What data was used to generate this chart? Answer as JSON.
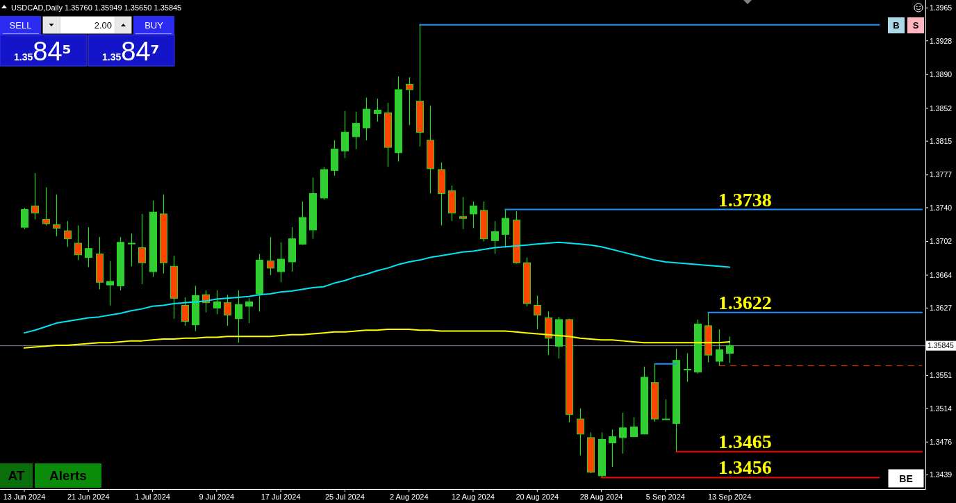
{
  "chart_data": {
    "type": "candlestick",
    "title": "USDCAD,Daily 1.35760 1.35949 1.35650 1.35845",
    "categories": [
      "13 Jun 2024",
      null,
      null,
      null,
      null,
      null,
      "21 Jun 2024",
      null,
      null,
      null,
      null,
      null,
      "1 Jul 2024",
      null,
      null,
      null,
      null,
      null,
      "9 Jul 2024",
      null,
      null,
      null,
      null,
      null,
      "17 Jul 2024",
      null,
      null,
      null,
      null,
      null,
      "25 Jul 2024",
      null,
      null,
      null,
      null,
      null,
      "2 Aug 2024",
      null,
      null,
      null,
      null,
      null,
      "12 Aug 2024",
      null,
      null,
      null,
      null,
      null,
      "20 Aug 2024",
      null,
      null,
      null,
      null,
      null,
      "28 Aug 2024",
      null,
      null,
      null,
      null,
      null,
      "5 Sep 2024",
      null,
      null,
      null,
      null,
      null,
      "13 Sep 2024",
      null,
      null,
      null,
      null,
      null,
      null,
      null,
      null,
      null,
      null,
      null,
      null,
      null,
      null,
      null,
      null,
      null,
      null
    ],
    "ohlc": [
      [
        1.3718,
        1.374,
        1.3716,
        1.3738
      ],
      [
        1.3742,
        1.3779,
        1.3727,
        1.3734
      ],
      [
        1.3727,
        1.3763,
        1.372,
        1.3722
      ],
      [
        1.3721,
        1.3755,
        1.3708,
        1.3717
      ],
      [
        1.3714,
        1.3725,
        1.3696,
        1.3705
      ],
      [
        1.37,
        1.372,
        1.3681,
        1.3687
      ],
      [
        1.3684,
        1.3718,
        1.3673,
        1.3694
      ],
      [
        1.3688,
        1.3707,
        1.3648,
        1.3656
      ],
      [
        1.3653,
        1.368,
        1.363,
        1.3657
      ],
      [
        1.3652,
        1.3707,
        1.3647,
        1.3701
      ],
      [
        1.37,
        1.3711,
        1.3674,
        1.37
      ],
      [
        1.3695,
        1.3733,
        1.3654,
        1.3678
      ],
      [
        1.3668,
        1.3748,
        1.3662,
        1.3735
      ],
      [
        1.3733,
        1.3755,
        1.3666,
        1.3678
      ],
      [
        1.3674,
        1.3686,
        1.3615,
        1.3638
      ],
      [
        1.363,
        1.3639,
        1.3607,
        1.3612
      ],
      [
        1.3608,
        1.3652,
        1.3601,
        1.3641
      ],
      [
        1.3642,
        1.3647,
        1.3622,
        1.3633
      ],
      [
        1.3627,
        1.3647,
        1.362,
        1.3634
      ],
      [
        1.3633,
        1.3642,
        1.3607,
        1.3619
      ],
      [
        1.3615,
        1.3647,
        1.3588,
        1.3631
      ],
      [
        1.3629,
        1.3638,
        1.361,
        1.3634
      ],
      [
        1.3643,
        1.3688,
        1.3623,
        1.3681
      ],
      [
        1.368,
        1.3707,
        1.3664,
        1.3672
      ],
      [
        1.3668,
        1.3701,
        1.3656,
        1.3682
      ],
      [
        1.3679,
        1.3718,
        1.3668,
        1.3705
      ],
      [
        1.3699,
        1.3747,
        1.3698,
        1.3729
      ],
      [
        1.3715,
        1.3774,
        1.3705,
        1.3756
      ],
      [
        1.3751,
        1.3786,
        1.3749,
        1.3783
      ],
      [
        1.3782,
        1.3816,
        1.3776,
        1.3806
      ],
      [
        1.3804,
        1.3849,
        1.3796,
        1.3825
      ],
      [
        1.382,
        1.3848,
        1.3806,
        1.3835
      ],
      [
        1.383,
        1.3864,
        1.3816,
        1.3851
      ],
      [
        1.3846,
        1.3863,
        1.3837,
        1.385
      ],
      [
        1.3847,
        1.3858,
        1.3786,
        1.3808
      ],
      [
        1.3802,
        1.3888,
        1.3792,
        1.3873
      ],
      [
        1.3879,
        1.3887,
        1.3833,
        1.3873
      ],
      [
        1.386,
        1.3946,
        1.3809,
        1.3825
      ],
      [
        1.3816,
        1.3855,
        1.3756,
        1.3784
      ],
      [
        1.3783,
        1.3791,
        1.372,
        1.3756
      ],
      [
        1.3759,
        1.3765,
        1.3725,
        1.3734
      ],
      [
        1.373,
        1.3752,
        1.3716,
        1.3728
      ],
      [
        1.3733,
        1.3747,
        1.3717,
        1.3742
      ],
      [
        1.3737,
        1.3747,
        1.3702,
        1.3705
      ],
      [
        1.3703,
        1.3725,
        1.3688,
        1.3713
      ],
      [
        1.371,
        1.3738,
        1.3695,
        1.3728
      ],
      [
        1.3726,
        1.3736,
        1.3677,
        1.3678
      ],
      [
        1.3678,
        1.3684,
        1.3629,
        1.3632
      ],
      [
        1.363,
        1.3641,
        1.3603,
        1.3619
      ],
      [
        1.3616,
        1.3623,
        1.3574,
        1.3593
      ],
      [
        1.3584,
        1.3617,
        1.357,
        1.3614
      ],
      [
        1.3614,
        1.3615,
        1.3498,
        1.3507
      ],
      [
        1.3502,
        1.3514,
        1.3461,
        1.3485
      ],
      [
        1.3481,
        1.3487,
        1.3441,
        1.3442
      ],
      [
        1.3438,
        1.3487,
        1.3436,
        1.3479
      ],
      [
        1.3475,
        1.349,
        1.3448,
        1.3482
      ],
      [
        1.3481,
        1.3509,
        1.3463,
        1.3492
      ],
      [
        1.3482,
        1.3504,
        1.3482,
        1.3493
      ],
      [
        1.3485,
        1.3561,
        1.3485,
        1.3549
      ],
      [
        1.3543,
        1.3564,
        1.3499,
        1.3502
      ],
      [
        1.3502,
        1.3524,
        1.3501,
        1.3502
      ],
      [
        1.3497,
        1.3581,
        1.3465,
        1.3568
      ],
      [
        1.3558,
        1.3576,
        1.3544,
        1.3558
      ],
      [
        1.3555,
        1.3614,
        1.3553,
        1.3609
      ],
      [
        1.3607,
        1.3622,
        1.3566,
        1.3574
      ],
      [
        1.3567,
        1.3603,
        1.3562,
        1.358
      ],
      [
        1.3576,
        1.35949,
        1.3565,
        1.35845
      ],
      null,
      null,
      null,
      null,
      null,
      null,
      null,
      null,
      null,
      null,
      null,
      null,
      null,
      null,
      null,
      null,
      null,
      null
    ],
    "color": "#22dd22",
    "colors": [
      "#32cd32",
      "#ff4500",
      "#ff4500",
      "#ff4500",
      "#ff4500",
      "#ff4500",
      "#32cd32",
      "#ff4500",
      "#32cd32",
      "#32cd32",
      "#32cd32",
      "#ff4500",
      "#32cd32",
      "#ff4500",
      "#ff4500",
      "#ff4500",
      "#32cd32",
      "#ff4500",
      "#32cd32",
      "#ff4500",
      "#32cd32",
      "#32cd32",
      "#32cd32",
      "#ff4500",
      "#32cd32",
      "#32cd32",
      "#32cd32",
      "#32cd32",
      "#32cd32",
      "#32cd32",
      "#32cd32",
      "#32cd32",
      "#32cd32",
      "#32cd32",
      "#ff4500",
      "#32cd32",
      "#ff4500",
      "#ff4500",
      "#ff4500",
      "#ff4500",
      "#ff4500",
      "#ff4500",
      "#32cd32",
      "#ff4500",
      "#32cd32",
      "#32cd32",
      "#ff4500",
      "#ff4500",
      "#ff4500",
      "#ff4500",
      "#32cd32",
      "#ff4500",
      "#ff4500",
      "#ff4500",
      "#32cd32",
      "#32cd32",
      "#32cd32",
      "#32cd32",
      "#32cd32",
      "#ff4500",
      "#32cd32",
      "#32cd32",
      "#32cd32",
      "#32cd32",
      "#ff4500",
      "#32cd32",
      "#32cd32",
      null,
      null,
      null,
      null,
      null,
      null,
      null,
      null,
      null,
      null,
      null,
      null,
      null,
      null,
      null,
      null,
      null,
      null
    ],
    "series": [
      {
        "type": "line",
        "color": "#00e5f5",
        "values": [
          1.3599,
          1.3602,
          1.3606,
          1.361,
          1.3612,
          1.3614,
          1.3616,
          1.3617,
          1.3619,
          1.3621,
          1.3624,
          1.3626,
          1.3629,
          1.363,
          1.3632,
          1.3633,
          1.3634,
          1.3635,
          1.3637,
          1.3638,
          1.3639,
          1.364,
          1.3642,
          1.3643,
          1.3645,
          1.3646,
          1.3648,
          1.365,
          1.3651,
          1.3655,
          1.3658,
          1.3662,
          1.3665,
          1.3669,
          1.3672,
          1.3676,
          1.3679,
          1.3681,
          1.3684,
          1.3686,
          1.3688,
          1.369,
          1.3691,
          1.3693,
          1.3695,
          1.3696,
          1.3697,
          1.3698,
          1.3699,
          1.37,
          1.3701,
          1.37,
          1.3699,
          1.3698,
          1.3696,
          1.3693,
          1.369,
          1.3687,
          1.3684,
          1.3681,
          1.3679,
          1.3678,
          1.3677,
          1.3676,
          1.3675,
          1.3674,
          1.3673,
          null,
          null,
          null,
          null,
          null,
          null,
          null,
          null,
          null,
          null,
          null,
          null,
          null,
          null,
          null,
          null,
          null,
          null
        ]
      },
      {
        "type": "line",
        "color": "#ffff00",
        "values": [
          1.3582,
          1.3583,
          1.3584,
          1.3585,
          1.3585,
          1.3586,
          1.3587,
          1.3588,
          1.3588,
          1.3589,
          1.359,
          1.359,
          1.3591,
          1.3592,
          1.3592,
          1.3593,
          1.3593,
          1.3594,
          1.3594,
          1.3595,
          1.3595,
          1.3595,
          1.3595,
          1.3595,
          1.3596,
          1.3597,
          1.3597,
          1.3598,
          1.3599,
          1.36,
          1.36,
          1.3601,
          1.3602,
          1.3602,
          1.3603,
          1.3603,
          1.3603,
          1.3602,
          1.3602,
          1.3601,
          1.3601,
          1.3601,
          1.3601,
          1.3601,
          1.3601,
          1.3601,
          1.36,
          1.3599,
          1.3598,
          1.3597,
          1.3596,
          1.3595,
          1.3593,
          1.3592,
          1.3591,
          1.3591,
          1.359,
          1.3589,
          1.3588,
          1.3588,
          1.3588,
          1.3588,
          1.3588,
          1.3588,
          1.3588,
          1.3588,
          1.3589,
          null,
          null,
          null,
          null,
          null,
          null,
          null,
          null,
          null,
          null,
          null,
          null,
          null,
          null,
          null,
          null,
          null,
          null
        ]
      },
      {
        "type": "line",
        "color": "#1e90ff",
        "values": [
          null,
          null,
          null,
          null,
          null,
          null,
          null,
          null,
          null,
          null,
          null,
          null,
          null,
          null,
          null,
          null,
          null,
          null,
          null,
          null,
          null,
          null,
          null,
          null,
          null,
          null,
          null,
          null,
          null,
          null,
          null,
          null,
          null,
          null,
          null,
          null,
          null,
          1.3946,
          1.3946,
          1.3946,
          1.3946,
          1.3946,
          1.3946,
          1.3946,
          1.3946,
          1.3946,
          1.3946,
          1.3946,
          1.3946,
          1.3946,
          1.3946,
          1.3946,
          1.3946,
          1.3946,
          1.3946,
          1.3946,
          1.3946,
          1.3946,
          1.3946,
          1.3946,
          1.3946,
          1.3946,
          1.3946,
          1.3946,
          1.3946,
          1.3946,
          1.3946,
          1.3946,
          1.3946,
          1.3946,
          1.3946,
          1.3946,
          1.3946,
          1.3946,
          1.3946,
          1.3946,
          1.3946,
          1.3946,
          1.3946,
          1.3946,
          1.3946,
          null,
          null,
          null,
          null
        ]
      },
      {
        "type": "line",
        "color": "#1e90ff",
        "values": [
          null,
          null,
          null,
          null,
          null,
          null,
          null,
          null,
          null,
          null,
          null,
          null,
          null,
          null,
          null,
          null,
          null,
          null,
          null,
          null,
          null,
          null,
          null,
          null,
          null,
          null,
          null,
          null,
          null,
          null,
          null,
          null,
          null,
          null,
          null,
          null,
          null,
          null,
          null,
          null,
          null,
          null,
          null,
          null,
          null,
          1.3738,
          1.3738,
          1.3738,
          1.3738,
          1.3738,
          1.3738,
          1.3738,
          1.3738,
          1.3738,
          1.3738,
          1.3738,
          1.3738,
          1.3738,
          1.3738,
          1.3738,
          1.3738,
          1.3738,
          1.3738,
          1.3738,
          1.3738,
          1.3738,
          1.3738,
          1.3738,
          1.3738,
          1.3738,
          1.3738,
          1.3738,
          1.3738,
          1.3738,
          1.3738,
          1.3738,
          1.3738,
          1.3738,
          1.3738,
          1.3738,
          1.3738,
          1.3738,
          1.3738,
          1.3738,
          1.3738
        ]
      },
      {
        "type": "line",
        "color": "#1e90ff",
        "values": [
          null,
          null,
          null,
          null,
          null,
          null,
          null,
          null,
          null,
          null,
          null,
          null,
          null,
          null,
          null,
          null,
          null,
          null,
          null,
          null,
          null,
          null,
          null,
          null,
          null,
          null,
          null,
          null,
          null,
          null,
          null,
          null,
          null,
          null,
          null,
          null,
          null,
          null,
          null,
          null,
          null,
          null,
          null,
          null,
          null,
          null,
          null,
          null,
          null,
          null,
          null,
          null,
          null,
          null,
          null,
          null,
          null,
          null,
          null,
          null,
          null,
          null,
          null,
          null,
          1.3622,
          1.3622,
          1.3622,
          1.3622,
          1.3622,
          1.3622,
          1.3622,
          1.3622,
          1.3622,
          1.3622,
          1.3622,
          1.3622,
          1.3622,
          1.3622,
          1.3622,
          1.3622,
          1.3622,
          1.3622,
          1.3622,
          1.3622,
          1.3622
        ]
      },
      {
        "type": "line",
        "color": "#1e90ff",
        "values": [
          null,
          null,
          null,
          null,
          null,
          null,
          null,
          null,
          null,
          null,
          null,
          null,
          null,
          null,
          null,
          null,
          null,
          null,
          null,
          null,
          null,
          null,
          null,
          null,
          null,
          null,
          null,
          null,
          null,
          null,
          null,
          null,
          null,
          null,
          null,
          null,
          null,
          null,
          null,
          null,
          null,
          null,
          null,
          null,
          null,
          null,
          null,
          null,
          null,
          null,
          null,
          null,
          null,
          null,
          null,
          null,
          null,
          null,
          null,
          1.3564,
          1.3564,
          1.3564,
          null,
          null,
          null,
          null,
          null,
          null,
          null,
          null,
          null,
          null,
          null,
          null,
          null,
          null,
          null,
          null,
          null,
          null,
          null,
          null,
          null,
          null,
          null
        ]
      },
      {
        "type": "line",
        "color": "#ff0000",
        "values": [
          null,
          null,
          null,
          null,
          null,
          null,
          null,
          null,
          null,
          null,
          null,
          null,
          null,
          null,
          null,
          null,
          null,
          null,
          null,
          null,
          null,
          null,
          null,
          null,
          null,
          null,
          null,
          null,
          null,
          null,
          null,
          null,
          null,
          null,
          null,
          null,
          null,
          null,
          null,
          null,
          null,
          null,
          null,
          null,
          null,
          null,
          null,
          null,
          null,
          null,
          null,
          null,
          null,
          null,
          null,
          null,
          null,
          null,
          null,
          null,
          null,
          1.3465,
          1.3465,
          1.3465,
          1.3465,
          1.3465,
          1.3465,
          1.3465,
          1.3465,
          1.3465,
          1.3465,
          1.3465,
          1.3465,
          1.3465,
          1.3465,
          1.3465,
          1.3465,
          1.3465,
          1.3465,
          1.3465,
          1.3465,
          1.3465,
          1.3465,
          1.3465,
          1.3465
        ]
      },
      {
        "type": "line",
        "color": "#ff0000",
        "values": [
          null,
          null,
          null,
          null,
          null,
          null,
          null,
          null,
          null,
          null,
          null,
          null,
          null,
          null,
          null,
          null,
          null,
          null,
          null,
          null,
          null,
          null,
          null,
          null,
          null,
          null,
          null,
          null,
          null,
          null,
          null,
          null,
          null,
          null,
          null,
          null,
          null,
          null,
          null,
          null,
          null,
          null,
          null,
          null,
          null,
          null,
          null,
          null,
          null,
          null,
          null,
          null,
          null,
          null,
          1.3436,
          1.3436,
          1.3436,
          1.3436,
          1.3436,
          1.3436,
          1.3436,
          1.3436,
          1.3436,
          1.3436,
          1.3436,
          1.3436,
          1.3436,
          1.3436,
          1.3436,
          1.3436,
          1.3436,
          1.3436,
          1.3436,
          1.3436,
          1.3436,
          1.3436,
          1.3436,
          1.3436,
          1.3436,
          1.3436,
          1.3436,
          null,
          null,
          null,
          null
        ]
      },
      {
        "type": "line",
        "color": "#ff4500",
        "line_style": "dashed",
        "values": [
          null,
          null,
          null,
          null,
          null,
          null,
          null,
          null,
          null,
          null,
          null,
          null,
          null,
          null,
          null,
          null,
          null,
          null,
          null,
          null,
          null,
          null,
          null,
          null,
          null,
          null,
          null,
          null,
          null,
          null,
          null,
          null,
          null,
          null,
          null,
          null,
          null,
          null,
          null,
          null,
          null,
          null,
          null,
          null,
          null,
          null,
          null,
          null,
          null,
          null,
          null,
          null,
          null,
          null,
          null,
          null,
          null,
          null,
          null,
          null,
          null,
          null,
          null,
          null,
          null,
          1.3562,
          1.3562,
          1.3562,
          1.3562,
          1.3562,
          1.3562,
          1.3562,
          1.3562,
          1.3562,
          1.3562,
          1.3562,
          1.3562,
          1.3562,
          1.3562,
          1.3562,
          1.3562,
          1.3562,
          1.3562,
          1.3562,
          1.3562
        ]
      }
    ],
    "ylim": [
      1.3423,
      1.3974
    ],
    "yticks": [
      1.3965,
      1.3928,
      {
        "value": 1.389,
        "label": "1.3890"
      },
      1.3852,
      1.3815,
      1.3777,
      {
        "value": 1.374,
        "label": "1.3740"
      },
      1.3702,
      1.3664,
      1.3627,
      {
        "value": 1.3589,
        "label": null
      },
      1.3551,
      1.3514,
      1.3476,
      1.3439
    ],
    "ref_lines": [
      {
        "axis": "y",
        "value": 1.35845,
        "label": "1.35845",
        "color": "#778899"
      }
    ],
    "annotations": [
      "SELL",
      "2.00",
      "BUY",
      "1.3584⁵",
      "1.3584⁷",
      "B",
      "S",
      "AT",
      "Alerts",
      "BE",
      {
        "text": "1.3738",
        "y": 1.3738
      },
      {
        "text": "1.3622",
        "y": 1.3622
      },
      {
        "text": "1.3465",
        "y": 1.3465
      },
      {
        "text": "1.3456",
        "y": 1.3436
      }
    ]
  }
}
